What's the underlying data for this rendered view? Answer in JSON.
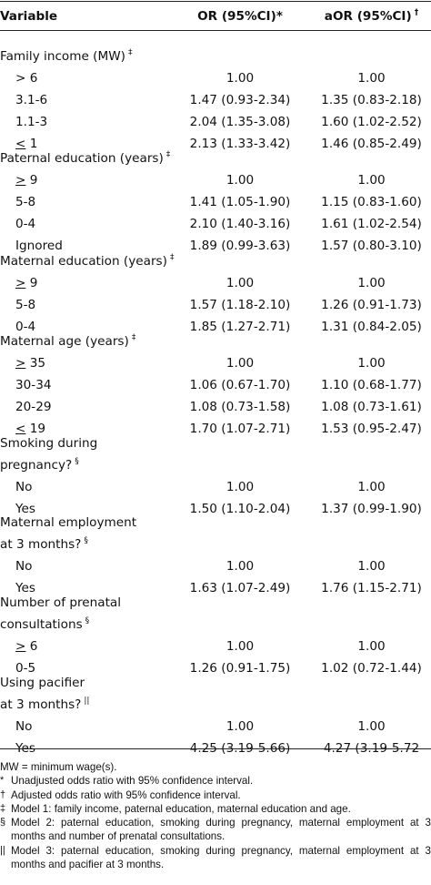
{
  "header": {
    "variable": "Variable",
    "or": "OR (95%CI)",
    "or_mark": "*",
    "aor": "aOR (95%CI)",
    "aor_mark": "†"
  },
  "sections": [
    {
      "label": "Family income (MW)",
      "mark": "‡",
      "rows": [
        {
          "pre": "> ",
          "name": "6",
          "or": "1.00",
          "aor": "1.00"
        },
        {
          "pre": "",
          "name": "3.1-6",
          "or": "1.47 (0.93-2.34)",
          "aor": "1.35 (0.83-2.18)"
        },
        {
          "pre": "",
          "name": "1.1-3",
          "or": "2.04 (1.35-3.08)",
          "aor": "1.60 (1.02-2.52)"
        },
        {
          "pre": "<",
          "name": " 1",
          "or": "2.13 (1.33-3.42)",
          "aor": "1.46 (0.85-2.49)"
        }
      ]
    },
    {
      "label": "Paternal education (years)",
      "mark": "‡",
      "rows": [
        {
          "pre": ">",
          "name": " 9",
          "or": "1.00",
          "aor": "1.00"
        },
        {
          "pre": "",
          "name": "5-8",
          "or": "1.41 (1.05-1.90)",
          "aor": "1.15 (0.83-1.60)"
        },
        {
          "pre": "",
          "name": "0-4",
          "or": "2.10 (1.40-3.16)",
          "aor": "1.61 (1.02-2.54)"
        },
        {
          "pre": "",
          "name": "Ignored",
          "or": "1.89 (0.99-3.63)",
          "aor": "1.57 (0.80-3.10)"
        }
      ]
    },
    {
      "label": "Maternal education (years)",
      "mark": "‡",
      "rows": [
        {
          "pre": ">",
          "name": " 9",
          "or": "1.00",
          "aor": "1.00"
        },
        {
          "pre": "",
          "name": "5-8",
          "or": "1.57 (1.18-2.10)",
          "aor": "1.26 (0.91-1.73)"
        },
        {
          "pre": "",
          "name": "0-4",
          "or": "1.85 (1.27-2.71)",
          "aor": "1.31 (0.84-2.05)"
        }
      ]
    },
    {
      "label": "Maternal age (years)",
      "mark": "‡",
      "rows": [
        {
          "pre": ">",
          "name": " 35",
          "or": "1.00",
          "aor": "1.00"
        },
        {
          "pre": "",
          "name": "30-34",
          "or": "1.06 (0.67-1.70)",
          "aor": "1.10 (0.68-1.77)"
        },
        {
          "pre": "",
          "name": "20-29",
          "or": "1.08 (0.73-1.58)",
          "aor": "1.08 (0.73-1.61)"
        },
        {
          "pre": "<",
          "name": " 19",
          "or": "1.70 (1.07-2.71)",
          "aor": "1.53 (0.95-2.47)"
        }
      ]
    },
    {
      "label": "Smoking during",
      "label2": "pregnancy?",
      "mark": "§",
      "rows": [
        {
          "pre": "",
          "name": "No",
          "or": "1.00",
          "aor": "1.00"
        },
        {
          "pre": "",
          "name": "Yes",
          "or": "1.50 (1.10-2.04)",
          "aor": "1.37 (0.99-1.90)"
        }
      ]
    },
    {
      "label": "Maternal employment",
      "label2": "at 3 months?",
      "mark": "§",
      "rows": [
        {
          "pre": "",
          "name": "No",
          "or": "1.00",
          "aor": "1.00"
        },
        {
          "pre": "",
          "name": "Yes",
          "or": "1.63 (1.07-2.49)",
          "aor": "1.76 (1.15-2.71)"
        }
      ]
    },
    {
      "label": "Number of prenatal",
      "label2": "consultations",
      "mark": "§",
      "rows": [
        {
          "pre": ">",
          "name": " 6",
          "or": "1.00",
          "aor": "1.00"
        },
        {
          "pre": "",
          "name": "0-5",
          "or": "1.26 (0.91-1.75)",
          "aor": "1.02 (0.72-1.44)"
        }
      ]
    },
    {
      "label": "Using pacifier",
      "label2": "at 3 months?",
      "mark": "||",
      "rows": [
        {
          "pre": "",
          "name": "No",
          "or": "1.00",
          "aor": "1.00"
        },
        {
          "pre": "",
          "name": "Yes",
          "or": "4.25 (3.19-5.66)",
          "aor": "4.27 (3.19-5.72"
        }
      ]
    }
  ],
  "notes": [
    {
      "mark": "",
      "text": "MW = minimum wage(s)."
    },
    {
      "mark": "*",
      "text": "Unadjusted odds ratio with 95% confidence interval."
    },
    {
      "mark": "†",
      "text": "Adjusted odds ratio with 95% confidence interval."
    },
    {
      "mark": "‡",
      "text": "Model 1: family income, paternal education, maternal education and age."
    },
    {
      "mark": "§",
      "text": "Model 2: paternal education, smoking during pregnancy, maternal employment at 3 months and number of prenatal consultations."
    },
    {
      "mark": "||",
      "text": "Model 3: paternal education, smoking during pregnancy, maternal employment at 3 months and pacifier at 3 months."
    }
  ]
}
